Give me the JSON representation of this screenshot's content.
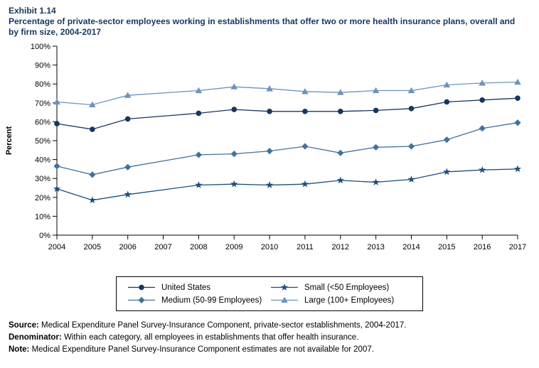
{
  "header": {
    "exhibit": "Exhibit 1.14",
    "title": "Percentage of private-sector employees working in establishments that offer two or more health insurance plans, overall and by firm size, 2004-2017"
  },
  "chart_data": {
    "type": "line",
    "title": "Percentage of private-sector employees working in establishments that offer two or more health insurance plans, overall and by firm size, 2004-2017",
    "xlabel": "",
    "ylabel": "Percent",
    "ylim": [
      0,
      100
    ],
    "ytick_step": 10,
    "ytick_suffix": "%",
    "grid": false,
    "legend_position": "bottom",
    "missing_data_note": "2007 estimates not available",
    "categories": [
      "2004",
      "2005",
      "2006",
      "2007",
      "2008",
      "2009",
      "2010",
      "2011",
      "2012",
      "2013",
      "2014",
      "2015",
      "2016",
      "2017"
    ],
    "series": [
      {
        "name": "United States",
        "marker": "circle",
        "color": "#17365d",
        "values": [
          59,
          56,
          61.5,
          null,
          64.5,
          66.5,
          65.5,
          65.5,
          65.5,
          66,
          67,
          70.5,
          71.5,
          72.5
        ]
      },
      {
        "name": "Small (<50 Employees)",
        "marker": "star",
        "color": "#1f4e79",
        "values": [
          24.5,
          18.5,
          21.5,
          null,
          26.5,
          27,
          26.5,
          27,
          29,
          28,
          29.5,
          33.5,
          34.5,
          35
        ]
      },
      {
        "name": "Medium (50-99 Employees)",
        "marker": "diamond",
        "color": "#41719c",
        "values": [
          36.5,
          32,
          36,
          null,
          42.5,
          43,
          44.5,
          47,
          43.5,
          46.5,
          47,
          50.5,
          56.5,
          59.5
        ]
      },
      {
        "name": "Large (100+ Employees)",
        "marker": "triangle",
        "color": "#6d92bd",
        "values": [
          70.5,
          69,
          74,
          null,
          76.5,
          78.5,
          77.5,
          76,
          75.5,
          76.5,
          76.5,
          79.5,
          80.5,
          81
        ]
      }
    ]
  },
  "footer": {
    "notes": [
      {
        "label": "Source:",
        "text": " Medical Expenditure Panel Survey-Insurance Component, private-sector establishments, 2004-2017."
      },
      {
        "label": "Denominator:",
        "text": " Within each category, all employees in establishments that offer health insurance."
      },
      {
        "label": "Note:",
        "text": " Medical Expenditure Panel Survey-Insurance Component estimates are not available for 2007."
      }
    ]
  }
}
